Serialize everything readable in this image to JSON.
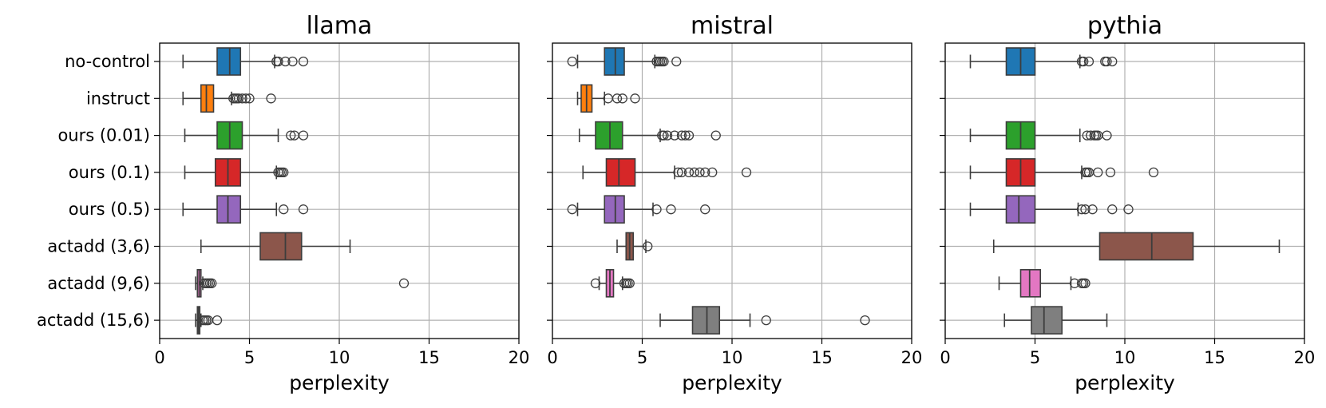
{
  "chart_data": [
    {
      "type": "box",
      "title": "llama",
      "xlabel": "perplexity",
      "xlim": [
        0,
        20
      ],
      "xticks": [
        0,
        5,
        10,
        15,
        20
      ],
      "grid": true,
      "categories": [
        "no-control",
        "instruct",
        "ours (0.01)",
        "ours (0.1)",
        "ours (0.5)",
        "actadd (3,6)",
        "actadd (9,6)",
        "actadd (15,6)"
      ],
      "colors": [
        "#1f77b4",
        "#ff7f0e",
        "#2ca02c",
        "#d62728",
        "#9467bd",
        "#8c564b",
        "#e377c2",
        "#7f7f7f"
      ],
      "boxes": [
        {
          "whislo": 1.3,
          "q1": 3.2,
          "med": 3.9,
          "q3": 4.5,
          "whishi": 6.4,
          "fliers": [
            6.5,
            6.6,
            7.0,
            7.4,
            8.0
          ]
        },
        {
          "whislo": 1.3,
          "q1": 2.3,
          "med": 2.6,
          "q3": 3.0,
          "whishi": 4.0,
          "fliers": [
            4.1,
            4.2,
            4.3,
            4.4,
            4.6,
            4.8,
            5.0,
            6.2
          ]
        },
        {
          "whislo": 1.4,
          "q1": 3.2,
          "med": 3.9,
          "q3": 4.6,
          "whishi": 6.6,
          "fliers": [
            7.3,
            7.5,
            8.0
          ]
        },
        {
          "whislo": 1.4,
          "q1": 3.1,
          "med": 3.8,
          "q3": 4.5,
          "whishi": 6.5,
          "fliers": [
            6.6,
            6.7,
            6.8,
            6.9
          ]
        },
        {
          "whislo": 1.3,
          "q1": 3.2,
          "med": 3.8,
          "q3": 4.5,
          "whishi": 6.5,
          "fliers": [
            6.9,
            8.0
          ]
        },
        {
          "whislo": 2.3,
          "q1": 5.6,
          "med": 7.0,
          "q3": 7.9,
          "whishi": 10.6,
          "fliers": []
        },
        {
          "whislo": 2.0,
          "q1": 2.1,
          "med": 2.2,
          "q3": 2.3,
          "whishi": 2.4,
          "fliers": [
            2.5,
            2.6,
            2.7,
            2.8,
            2.9,
            13.6
          ]
        },
        {
          "whislo": 2.0,
          "q1": 2.1,
          "med": 2.15,
          "q3": 2.2,
          "whishi": 2.3,
          "fliers": [
            2.4,
            2.5,
            2.6,
            2.7,
            3.2
          ]
        }
      ]
    },
    {
      "type": "box",
      "title": "mistral",
      "xlabel": "perplexity",
      "xlim": [
        0,
        20
      ],
      "xticks": [
        0,
        5,
        10,
        15,
        20
      ],
      "grid": true,
      "categories": [
        "no-control",
        "instruct",
        "ours (0.01)",
        "ours (0.1)",
        "ours (0.5)",
        "actadd (3,6)",
        "actadd (9,6)",
        "actadd (15,6)"
      ],
      "colors": [
        "#1f77b4",
        "#ff7f0e",
        "#2ca02c",
        "#d62728",
        "#9467bd",
        "#8c564b",
        "#e377c2",
        "#7f7f7f"
      ],
      "boxes": [
        {
          "whislo": 1.4,
          "q1": 2.9,
          "med": 3.5,
          "q3": 4.0,
          "whishi": 5.7,
          "fliers": [
            1.1,
            5.8,
            5.9,
            6.0,
            6.1,
            6.2,
            6.9
          ]
        },
        {
          "whislo": 1.4,
          "q1": 1.6,
          "med": 1.9,
          "q3": 2.2,
          "whishi": 2.9,
          "fliers": [
            3.1,
            3.6,
            3.9,
            4.6
          ]
        },
        {
          "whislo": 1.5,
          "q1": 2.4,
          "med": 3.2,
          "q3": 3.9,
          "whishi": 6.0,
          "fliers": [
            6.1,
            6.2,
            6.4,
            6.8,
            7.2,
            7.4,
            7.6,
            9.1
          ]
        },
        {
          "whislo": 1.7,
          "q1": 3.0,
          "med": 3.7,
          "q3": 4.6,
          "whishi": 6.8,
          "fliers": [
            7.0,
            7.2,
            7.6,
            7.9,
            8.2,
            8.5,
            8.9,
            10.8
          ]
        },
        {
          "whislo": 1.4,
          "q1": 2.9,
          "med": 3.5,
          "q3": 4.0,
          "whishi": 5.6,
          "fliers": [
            1.1,
            5.8,
            6.6,
            8.5
          ]
        },
        {
          "whislo": 3.6,
          "q1": 4.1,
          "med": 4.3,
          "q3": 4.5,
          "whishi": 5.2,
          "fliers": [
            5.3
          ]
        },
        {
          "whislo": 2.6,
          "q1": 3.0,
          "med": 3.2,
          "q3": 3.4,
          "whishi": 3.9,
          "fliers": [
            2.4,
            4.0,
            4.1,
            4.2,
            4.3
          ]
        },
        {
          "whislo": 6.0,
          "q1": 7.8,
          "med": 8.6,
          "q3": 9.3,
          "whishi": 11.0,
          "fliers": [
            11.9,
            17.4
          ]
        }
      ]
    },
    {
      "type": "box",
      "title": "pythia",
      "xlabel": "perplexity",
      "xlim": [
        0,
        20
      ],
      "xticks": [
        0,
        5,
        10,
        15,
        20
      ],
      "grid": true,
      "categories": [
        "no-control",
        "instruct",
        "ours (0.01)",
        "ours (0.1)",
        "ours (0.5)",
        "actadd (3,6)",
        "actadd (9,6)",
        "actadd (15,6)"
      ],
      "colors": [
        "#1f77b4",
        "#ff7f0e",
        "#2ca02c",
        "#d62728",
        "#9467bd",
        "#8c564b",
        "#e377c2",
        "#7f7f7f"
      ],
      "boxes": [
        {
          "whislo": 1.4,
          "q1": 3.4,
          "med": 4.2,
          "q3": 5.0,
          "whishi": 7.5,
          "fliers": [
            7.6,
            7.7,
            8.0,
            8.9,
            9.0,
            9.3
          ]
        },
        null,
        {
          "whislo": 1.4,
          "q1": 3.4,
          "med": 4.2,
          "q3": 5.0,
          "whishi": 7.5,
          "fliers": [
            7.9,
            8.1,
            8.3,
            8.4,
            8.5,
            9.0
          ]
        },
        {
          "whislo": 1.4,
          "q1": 3.4,
          "med": 4.2,
          "q3": 5.0,
          "whishi": 7.6,
          "fliers": [
            7.8,
            7.9,
            8.0,
            8.5,
            9.2,
            11.6
          ]
        },
        {
          "whislo": 1.4,
          "q1": 3.4,
          "med": 4.1,
          "q3": 5.0,
          "whishi": 7.4,
          "fliers": [
            7.6,
            7.8,
            8.2,
            9.3,
            10.2
          ]
        },
        {
          "whislo": 2.7,
          "q1": 8.6,
          "med": 11.5,
          "q3": 13.8,
          "whishi": 18.6,
          "fliers": []
        },
        {
          "whislo": 3.0,
          "q1": 4.2,
          "med": 4.7,
          "q3": 5.3,
          "whishi": 7.0,
          "fliers": [
            7.2,
            7.6,
            7.7,
            7.8
          ]
        },
        {
          "whislo": 3.3,
          "q1": 4.8,
          "med": 5.5,
          "q3": 6.5,
          "whishi": 9.0,
          "fliers": []
        }
      ]
    }
  ]
}
